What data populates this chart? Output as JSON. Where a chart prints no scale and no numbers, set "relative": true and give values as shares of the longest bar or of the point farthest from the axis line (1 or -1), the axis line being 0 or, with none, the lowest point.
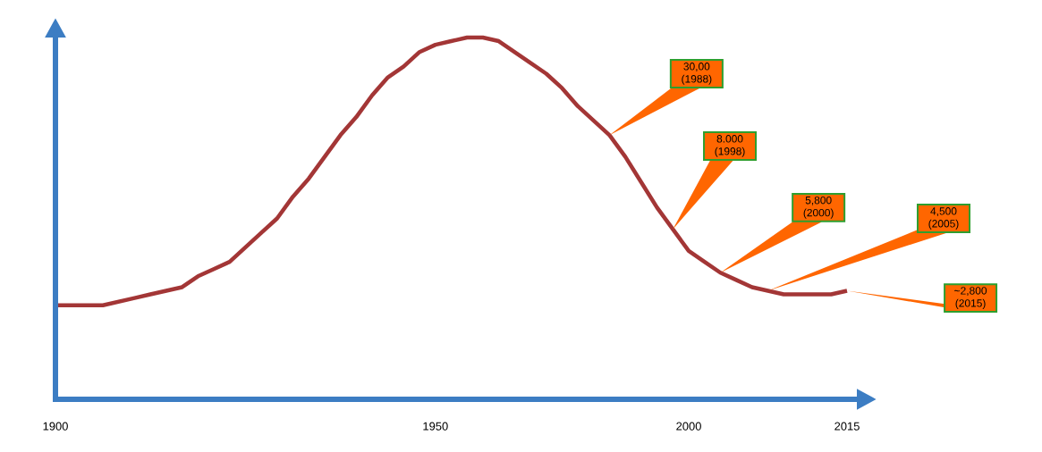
{
  "chart_data": {
    "type": "line",
    "relative": true,
    "color": "#a33636",
    "categories": [
      "1900",
      null,
      null,
      null,
      null,
      null,
      null,
      null,
      null,
      null,
      null,
      null,
      null,
      null,
      null,
      null,
      null,
      null,
      null,
      null,
      null,
      null,
      null,
      null,
      "1950",
      null,
      null,
      null,
      null,
      null,
      null,
      null,
      null,
      null,
      null,
      null,
      null,
      null,
      null,
      null,
      "2000",
      null,
      null,
      null,
      null,
      null,
      null,
      null,
      null,
      null,
      "2015"
    ],
    "values": [
      0.26,
      0.26,
      0.26,
      0.26,
      0.27,
      0.28,
      0.29,
      0.3,
      0.31,
      0.34,
      0.36,
      0.38,
      0.42,
      0.46,
      0.5,
      0.56,
      0.61,
      0.67,
      0.73,
      0.78,
      0.84,
      0.89,
      0.92,
      0.96,
      0.98,
      0.99,
      1.0,
      1.0,
      0.99,
      0.96,
      0.93,
      0.9,
      0.86,
      0.81,
      0.77,
      0.73,
      0.67,
      0.6,
      0.53,
      0.47,
      0.41,
      0.38,
      0.35,
      0.33,
      0.31,
      0.3,
      0.29,
      0.29,
      0.29,
      0.29,
      0.3
    ],
    "annotations": [
      "30,00 (1988)",
      "8.000 (1998)",
      "5,800 (2000)",
      "4,500 (2005)",
      "~2,800 (2015)"
    ]
  }
}
